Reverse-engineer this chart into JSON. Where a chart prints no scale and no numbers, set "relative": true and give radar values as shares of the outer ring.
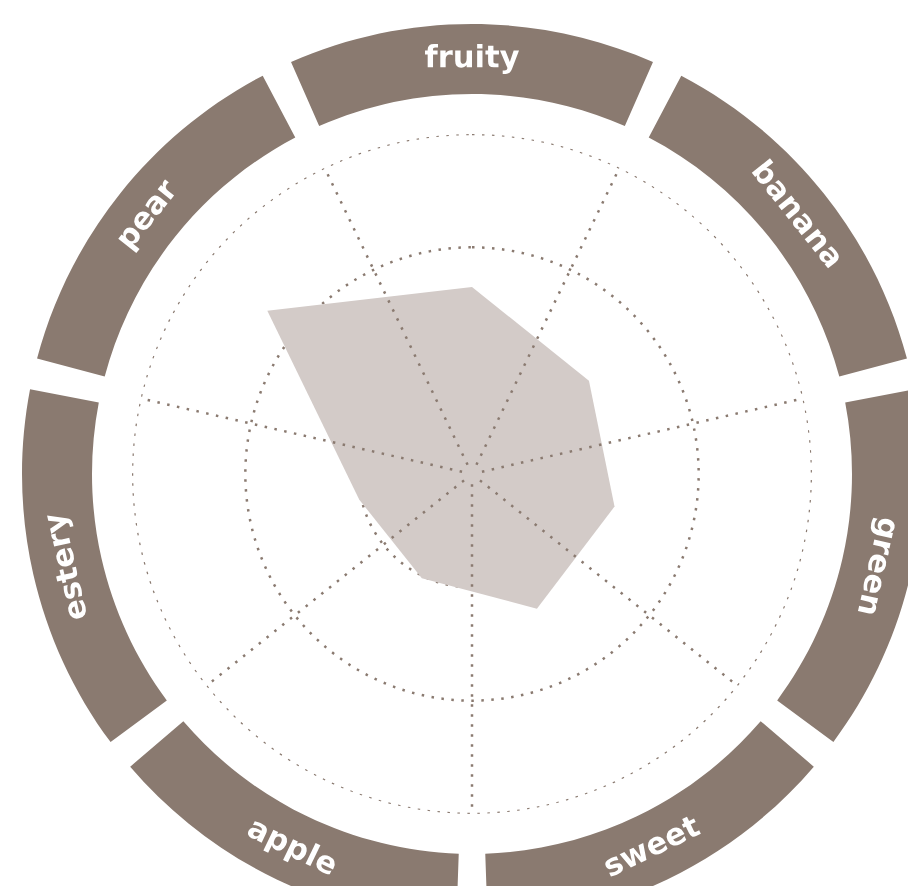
{
  "chart_data": {
    "type": "radar",
    "relative": true,
    "grid": true,
    "categories": [
      "fruity",
      "banana",
      "green",
      "sweet",
      "apple",
      "estery",
      "pear"
    ],
    "series": [
      {
        "color": "#d3cbc8",
        "values": [
          0.55,
          0.44,
          0.43,
          0.44,
          0.34,
          0.34,
          0.77
        ]
      }
    ]
  }
}
